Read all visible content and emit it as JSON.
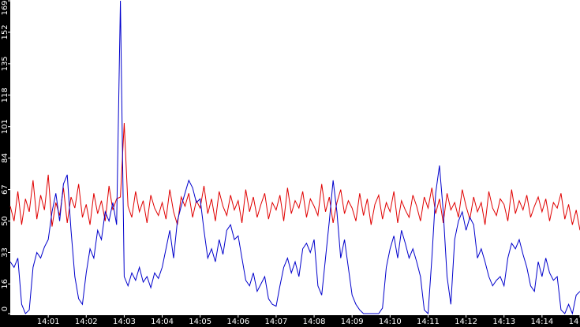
{
  "chart_data": {
    "type": "line",
    "x": [
      0,
      0.1,
      0.2,
      0.3,
      0.4,
      0.5,
      0.6,
      0.7,
      0.8,
      0.9,
      1,
      1.1,
      1.2,
      1.3,
      1.4,
      1.5,
      1.6,
      1.7,
      1.8,
      1.9,
      2,
      2.1,
      2.2,
      2.3,
      2.4,
      2.5,
      2.6,
      2.7,
      2.8,
      2.9,
      3,
      3.1,
      3.2,
      3.3,
      3.4,
      3.5,
      3.6,
      3.7,
      3.8,
      3.9,
      4,
      4.1,
      4.2,
      4.3,
      4.4,
      4.5,
      4.6,
      4.7,
      4.8,
      4.9,
      5,
      5.1,
      5.2,
      5.3,
      5.4,
      5.5,
      5.6,
      5.7,
      5.8,
      5.9,
      6,
      6.1,
      6.2,
      6.3,
      6.4,
      6.5,
      6.6,
      6.7,
      6.8,
      6.9,
      7,
      7.1,
      7.2,
      7.3,
      7.4,
      7.5,
      7.6,
      7.7,
      7.8,
      7.9,
      8,
      8.1,
      8.2,
      8.3,
      8.4,
      8.5,
      8.6,
      8.7,
      8.8,
      8.9,
      9,
      9.1,
      9.2,
      9.3,
      9.4,
      9.5,
      9.6,
      9.7,
      9.8,
      9.9,
      10,
      10.1,
      10.2,
      10.3,
      10.4,
      10.5,
      10.6,
      10.7,
      10.8,
      10.9,
      11,
      11.1,
      11.2,
      11.3,
      11.4,
      11.5,
      11.6,
      11.7,
      11.8,
      11.9,
      12,
      12.1,
      12.2,
      12.3,
      12.4,
      12.5,
      12.6,
      12.7,
      12.8,
      12.9,
      13,
      13.1,
      13.2,
      13.3,
      13.4,
      13.5,
      13.6,
      13.7,
      13.8,
      13.9,
      14,
      14.1,
      14.2,
      14.3,
      14.4,
      14.5,
      14.6,
      14.7,
      14.8,
      14.9,
      15
    ],
    "series": [
      {
        "color": "#e00000",
        "values": [
          58,
          50,
          66,
          48,
          62,
          55,
          72,
          51,
          64,
          56,
          75,
          47,
          60,
          53,
          68,
          49,
          63,
          57,
          70,
          52,
          59,
          48,
          65,
          54,
          61,
          50,
          69,
          56,
          62,
          63,
          103,
          58,
          52,
          66,
          55,
          61,
          49,
          64,
          57,
          53,
          60,
          51,
          67,
          55,
          48,
          63,
          58,
          65,
          52,
          61,
          57,
          69,
          54,
          62,
          50,
          66,
          58,
          53,
          64,
          56,
          61,
          49,
          67,
          55,
          63,
          52,
          59,
          65,
          51,
          60,
          56,
          64,
          50,
          68,
          54,
          61,
          57,
          66,
          52,
          62,
          58,
          53,
          70,
          55,
          63,
          49,
          60,
          67,
          54,
          61,
          57,
          50,
          65,
          53,
          62,
          48,
          59,
          64,
          51,
          60,
          55,
          66,
          49,
          61,
          56,
          52,
          64,
          58,
          50,
          63,
          57,
          68,
          54,
          62,
          49,
          65,
          56,
          60,
          52,
          67,
          58,
          51,
          63,
          55,
          60,
          48,
          66,
          57,
          53,
          62,
          59,
          50,
          67,
          54,
          61,
          56,
          64,
          52,
          58,
          63,
          55,
          62,
          50,
          60,
          57,
          65,
          51,
          59,
          48,
          56,
          45
        ]
      },
      {
        "color": "#0000cc",
        "values": [
          28,
          25,
          30,
          5,
          0,
          2,
          25,
          33,
          30,
          36,
          40,
          55,
          65,
          50,
          70,
          75,
          45,
          20,
          8,
          5,
          22,
          35,
          30,
          45,
          40,
          55,
          50,
          60,
          48,
          169,
          20,
          15,
          22,
          18,
          25,
          17,
          20,
          14,
          22,
          19,
          25,
          35,
          45,
          30,
          50,
          58,
          65,
          72,
          68,
          60,
          62,
          45,
          30,
          35,
          28,
          40,
          32,
          45,
          48,
          40,
          42,
          30,
          18,
          15,
          22,
          12,
          16,
          20,
          8,
          5,
          4,
          15,
          25,
          30,
          22,
          28,
          20,
          35,
          38,
          33,
          40,
          15,
          10,
          30,
          50,
          72,
          55,
          30,
          40,
          25,
          10,
          5,
          2,
          0,
          0,
          0,
          0,
          0,
          3,
          25,
          35,
          42,
          30,
          45,
          38,
          30,
          35,
          28,
          20,
          2,
          0,
          30,
          65,
          80,
          55,
          20,
          5,
          40,
          50,
          55,
          45,
          52,
          48,
          30,
          35,
          28,
          20,
          15,
          18,
          20,
          15,
          30,
          38,
          35,
          40,
          32,
          25,
          15,
          12,
          28,
          20,
          30,
          22,
          18,
          20,
          2,
          0,
          5,
          0,
          10,
          12
        ]
      }
    ],
    "xlim": [
      0,
      15
    ],
    "xticks": [
      {
        "value": 1,
        "label": "14:01"
      },
      {
        "value": 2,
        "label": "14:02"
      },
      {
        "value": 3,
        "label": "14:03"
      },
      {
        "value": 4,
        "label": "14:04"
      },
      {
        "value": 5,
        "label": "14:05"
      },
      {
        "value": 6,
        "label": "14:06"
      },
      {
        "value": 7,
        "label": "14:07"
      },
      {
        "value": 8,
        "label": "14:08"
      },
      {
        "value": 9,
        "label": "14:09"
      },
      {
        "value": 10,
        "label": "14:10"
      },
      {
        "value": 11,
        "label": "14:11"
      },
      {
        "value": 12,
        "label": "14:12"
      },
      {
        "value": 13,
        "label": "14:13"
      },
      {
        "value": 14,
        "label": "14:14"
      },
      {
        "value": 15,
        "label": "14"
      }
    ],
    "ylim": [
      0,
      169
    ],
    "yticks": [
      0,
      16,
      33,
      50,
      67,
      84,
      101,
      118,
      135,
      152,
      169
    ]
  }
}
